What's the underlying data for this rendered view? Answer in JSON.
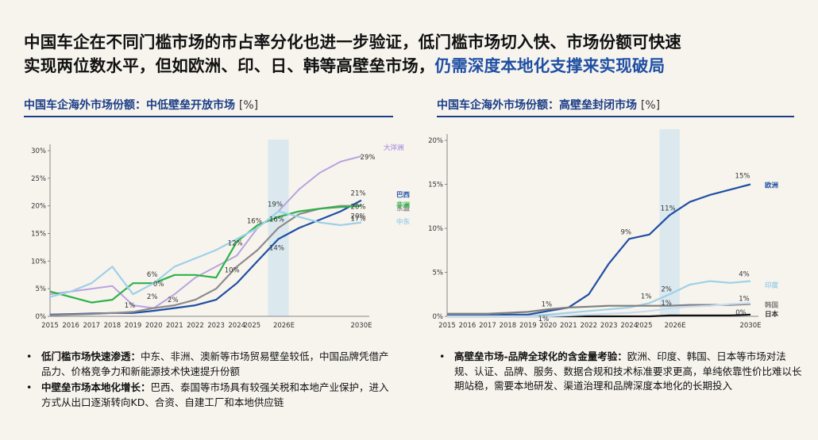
{
  "title": {
    "line1": "中国车企在不同门槛市场的市占率分化也进一步验证，低门槛市场切入快、市场份额可快速",
    "line2_plain": "实现两位数水平，但如欧洲、印、日、韩等高壁垒市场，",
    "line2_highlight": "仍需深度本地化支撑来实现破局"
  },
  "left_panel": {
    "subtitle": "中国车企海外市场份额：中低壁垒开放市场",
    "unit": "[%]",
    "bullets": [
      {
        "bold": "低门槛市场快速渗透：",
        "text": "中东、非洲、澳新等市场贸易壁垒较低，中国品牌凭借产品力、价格竞争力和新能源技术快速提升份额"
      },
      {
        "bold": "中壁垒市场本地化增长：",
        "text": "巴西、泰国等市场具有较强关税和本地产业保护，进入方式从出口逐渐转向KD、合资、自建工厂和本地供应链"
      }
    ]
  },
  "right_panel": {
    "subtitle": "中国车企海外市场份额：高壁垒封闭市场",
    "unit": "[%]",
    "bullets": [
      {
        "bold": "高壁垒市场-品牌全球化的含金量考验：",
        "text": "欧洲、印度、韩国、日本等市场对法规、认证、品牌、服务、数据合规和技术标准要求更高，单纯依靠性价比难以长期站稳，需要本地研发、渠道治理和品牌深度本地化的长期投入"
      }
    ]
  },
  "chart_data": [
    {
      "type": "line",
      "title": "中国车企海外市场份额：中低壁垒开放市场",
      "unit": "[%]",
      "x_tick_labels": [
        "2015",
        "2016",
        "2017",
        "2018",
        "2019",
        "2020",
        "2021",
        "2022",
        "2023",
        "2024",
        "2025",
        "2026E",
        "2030E"
      ],
      "x": [
        2015,
        2016,
        2017,
        2018,
        2019,
        2020,
        2021,
        2022,
        2023,
        2024,
        2025,
        2026,
        2027,
        2028,
        2029,
        2030
      ],
      "y_ticks": [
        0,
        5,
        10,
        15,
        20,
        25,
        30
      ],
      "ytick_labels": [
        "0%",
        "5%",
        "10%",
        "15%",
        "20%",
        "25%",
        "30%"
      ],
      "ylim": [
        0,
        30
      ],
      "highlight_band": [
        2025.5,
        2026.5
      ],
      "series": [
        {
          "name": "大洋洲",
          "color": "#b9a3df",
          "values": [
            4,
            4.5,
            5,
            5.5,
            2,
            1.5,
            4,
            7,
            9,
            11,
            16,
            19,
            23,
            26,
            28,
            29
          ]
        },
        {
          "name": "巴西",
          "color": "#1f4fa3",
          "values": [
            0.3,
            0.4,
            0.5,
            0.6,
            0.6,
            1,
            1.5,
            2,
            3,
            6,
            10,
            14,
            16,
            17.5,
            19,
            21
          ]
        },
        {
          "name": "东盟",
          "color": "#8e8a8c",
          "values": [
            0.2,
            0.3,
            0.4,
            0.6,
            0.8,
            1.5,
            2,
            3,
            5,
            9,
            12,
            16,
            18.5,
            19.5,
            20,
            20
          ]
        },
        {
          "name": "非洲",
          "color": "#2eb24a",
          "values": [
            4.5,
            3.5,
            2.5,
            3,
            6,
            6,
            7.5,
            7.5,
            7,
            13.5,
            16.5,
            18,
            19,
            19.5,
            19.8,
            20
          ]
        },
        {
          "name": "中东",
          "color": "#9fd0e8",
          "values": [
            3.5,
            4.5,
            6,
            9,
            4,
            6,
            9,
            10.5,
            12,
            14,
            16,
            19,
            18,
            17,
            16.5,
            17
          ]
        }
      ],
      "point_labels": [
        "29%",
        "19%",
        "16%",
        "12%",
        "16%",
        "14%",
        "10%",
        "21%",
        "20%",
        "20%",
        "17%",
        "6%",
        "0%",
        "2%",
        "2%",
        "1%"
      ]
    },
    {
      "type": "line",
      "title": "中国车企海外市场份额：高壁垒封闭市场",
      "unit": "[%]",
      "x_tick_labels": [
        "2015",
        "2016",
        "2017",
        "2018",
        "2019",
        "2020",
        "2021",
        "2022",
        "2023",
        "2024",
        "2025",
        "2026E",
        "2030E"
      ],
      "x": [
        2015,
        2016,
        2017,
        2018,
        2019,
        2020,
        2021,
        2022,
        2023,
        2024,
        2025,
        2026,
        2027,
        2028,
        2029,
        2030
      ],
      "y_ticks": [
        0,
        5,
        10,
        15,
        20
      ],
      "ytick_labels": [
        "0%",
        "5%",
        "10%",
        "15%",
        "20%"
      ],
      "ylim": [
        0,
        20
      ],
      "highlight_band": [
        2025.5,
        2026.5
      ],
      "series": [
        {
          "name": "欧洲",
          "color": "#1f4fa3",
          "values": [
            0.1,
            0.1,
            0.1,
            0.2,
            0.2,
            0.6,
            1,
            2.5,
            6,
            8.8,
            9.3,
            11.5,
            13,
            13.8,
            14.4,
            15
          ]
        },
        {
          "name": "印度",
          "color": "#9fd0e8",
          "values": [
            0,
            0,
            0,
            0,
            0,
            0.2,
            0.4,
            0.6,
            0.8,
            1,
            1.5,
            2.5,
            3.6,
            4,
            3.8,
            4
          ]
        },
        {
          "name": "韩国",
          "color": "#7f7f7f",
          "values": [
            0.3,
            0.3,
            0.3,
            0.4,
            0.5,
            0.8,
            1,
            1.1,
            1.2,
            1.2,
            1.2,
            1.2,
            1.3,
            1.3,
            1.3,
            1.4
          ]
        },
        {
          "name": "日本",
          "color": "#111111",
          "values": [
            0,
            0,
            0,
            0,
            0,
            0,
            0,
            0,
            0,
            0,
            0,
            0.1,
            0.1,
            0.1,
            0.1,
            0.2
          ]
        },
        {
          "name": "",
          "color": "#c8dcef",
          "values": [
            0,
            0,
            0,
            0,
            0,
            0,
            0.1,
            0.2,
            0.3,
            0.4,
            0.6,
            0.9,
            1.1,
            1.2,
            1.4,
            1.5
          ]
        }
      ],
      "point_labels": [
        "15%",
        "11%",
        "9%",
        "2%",
        "1%",
        "1%",
        "1%",
        "4%",
        "1%",
        "0%",
        "1%"
      ]
    }
  ]
}
